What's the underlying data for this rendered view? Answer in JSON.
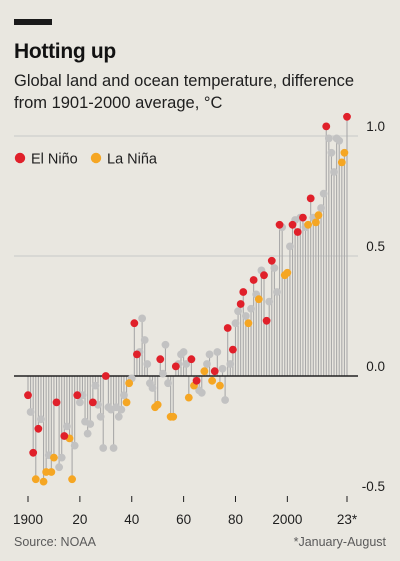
{
  "title": "Hotting up",
  "subtitle": "Global land and ocean temperature, difference from 1901-2000 average, °C",
  "source": "Source: NOAA",
  "footnote": "*January-August",
  "colors": {
    "background": "#e9e7e0",
    "el_nino": "#e0202a",
    "la_nina": "#f5a623",
    "neutral": "#c2c2c2",
    "stem": "#a9a9a9",
    "grid": "#c8c8c8",
    "zero_line": "#222222"
  },
  "chart_data": {
    "type": "scatter",
    "ylim": [
      -0.5,
      1.05
    ],
    "xlim": [
      1900,
      2023
    ],
    "y_ticks": [
      {
        "value": 1.0,
        "label": "1.0"
      },
      {
        "value": 0.5,
        "label": "0.5"
      },
      {
        "value": 0.0,
        "label": "0.0"
      },
      {
        "value": -0.5,
        "label": "-0.5"
      }
    ],
    "x_ticks": [
      {
        "value": 1900,
        "label": "1900"
      },
      {
        "value": 1920,
        "label": "20"
      },
      {
        "value": 1940,
        "label": "40"
      },
      {
        "value": 1960,
        "label": "60"
      },
      {
        "value": 1980,
        "label": "80"
      },
      {
        "value": 2000,
        "label": "2000"
      },
      {
        "value": 2023,
        "label": "23*"
      }
    ],
    "legend": [
      "El Niño",
      "La Niña"
    ],
    "grid": true,
    "x": [
      1900,
      1901,
      1902,
      1903,
      1904,
      1905,
      1906,
      1907,
      1908,
      1909,
      1910,
      1911,
      1912,
      1913,
      1914,
      1915,
      1916,
      1917,
      1918,
      1919,
      1920,
      1921,
      1922,
      1923,
      1924,
      1925,
      1926,
      1927,
      1928,
      1929,
      1930,
      1931,
      1932,
      1933,
      1934,
      1935,
      1936,
      1937,
      1938,
      1939,
      1940,
      1941,
      1942,
      1943,
      1944,
      1945,
      1946,
      1947,
      1948,
      1949,
      1950,
      1951,
      1952,
      1953,
      1954,
      1955,
      1956,
      1957,
      1958,
      1959,
      1960,
      1961,
      1962,
      1963,
      1964,
      1965,
      1966,
      1967,
      1968,
      1969,
      1970,
      1971,
      1972,
      1973,
      1974,
      1975,
      1976,
      1977,
      1978,
      1979,
      1980,
      1981,
      1982,
      1983,
      1984,
      1985,
      1986,
      1987,
      1988,
      1989,
      1990,
      1991,
      1992,
      1993,
      1994,
      1995,
      1996,
      1997,
      1998,
      1999,
      2000,
      2001,
      2002,
      2003,
      2004,
      2005,
      2006,
      2007,
      2008,
      2009,
      2010,
      2011,
      2012,
      2013,
      2014,
      2015,
      2016,
      2017,
      2018,
      2019,
      2020,
      2021,
      2022,
      2023
    ],
    "series": [
      {
        "name": "El Niño",
        "points": [
          [
            1900,
            -0.08
          ],
          [
            1902,
            -0.32
          ],
          [
            1904,
            -0.22
          ],
          [
            1911,
            -0.11
          ],
          [
            1914,
            -0.25
          ],
          [
            1919,
            -0.08
          ],
          [
            1925,
            -0.11
          ],
          [
            1930,
            0.0
          ],
          [
            1941,
            0.22
          ],
          [
            1942,
            0.09
          ],
          [
            1951,
            0.07
          ],
          [
            1957,
            0.04
          ],
          [
            1963,
            0.07
          ],
          [
            1965,
            -0.02
          ],
          [
            1972,
            0.02
          ],
          [
            1977,
            0.2
          ],
          [
            1979,
            0.11
          ],
          [
            1982,
            0.3
          ],
          [
            1983,
            0.35
          ],
          [
            1987,
            0.4
          ],
          [
            1991,
            0.42
          ],
          [
            1992,
            0.23
          ],
          [
            1994,
            0.48
          ],
          [
            1997,
            0.63
          ],
          [
            2002,
            0.63
          ],
          [
            2004,
            0.6
          ],
          [
            2006,
            0.66
          ],
          [
            2009,
            0.74
          ],
          [
            2015,
            1.04
          ],
          [
            2023,
            1.08
          ]
        ]
      },
      {
        "name": "La Niña",
        "points": [
          [
            1903,
            -0.43
          ],
          [
            1906,
            -0.44
          ],
          [
            1907,
            -0.4
          ],
          [
            1909,
            -0.4
          ],
          [
            1910,
            -0.34
          ],
          [
            1916,
            -0.26
          ],
          [
            1917,
            -0.43
          ],
          [
            1938,
            -0.11
          ],
          [
            1939,
            -0.03
          ],
          [
            1949,
            -0.13
          ],
          [
            1950,
            -0.12
          ],
          [
            1955,
            -0.17
          ],
          [
            1956,
            -0.17
          ],
          [
            1962,
            -0.09
          ],
          [
            1964,
            -0.04
          ],
          [
            1968,
            0.02
          ],
          [
            1971,
            -0.02
          ],
          [
            1974,
            -0.04
          ],
          [
            1985,
            0.22
          ],
          [
            1989,
            0.32
          ],
          [
            1999,
            0.42
          ],
          [
            2000,
            0.43
          ],
          [
            2008,
            0.63
          ],
          [
            2011,
            0.64
          ],
          [
            2012,
            0.67
          ],
          [
            2021,
            0.89
          ],
          [
            2022,
            0.93
          ]
        ]
      },
      {
        "name": "",
        "points": [
          [
            1901,
            -0.15
          ],
          [
            1905,
            -0.18
          ],
          [
            1908,
            -0.33
          ],
          [
            1912,
            -0.38
          ],
          [
            1913,
            -0.34
          ],
          [
            1915,
            -0.21
          ],
          [
            1918,
            -0.29
          ],
          [
            1920,
            -0.11
          ],
          [
            1921,
            -0.08
          ],
          [
            1922,
            -0.19
          ],
          [
            1923,
            -0.24
          ],
          [
            1924,
            -0.2
          ],
          [
            1926,
            -0.04
          ],
          [
            1927,
            -0.12
          ],
          [
            1928,
            -0.17
          ],
          [
            1929,
            -0.3
          ],
          [
            1931,
            -0.13
          ],
          [
            1932,
            -0.14
          ],
          [
            1933,
            -0.3
          ],
          [
            1934,
            -0.13
          ],
          [
            1935,
            -0.17
          ],
          [
            1936,
            -0.14
          ],
          [
            1937,
            -0.08
          ],
          [
            1940,
            -0.01
          ],
          [
            1943,
            0.1
          ],
          [
            1944,
            0.24
          ],
          [
            1945,
            0.15
          ],
          [
            1946,
            0.05
          ],
          [
            1947,
            -0.03
          ],
          [
            1948,
            -0.05
          ],
          [
            1952,
            0.01
          ],
          [
            1953,
            0.13
          ],
          [
            1954,
            -0.03
          ],
          [
            1958,
            0.05
          ],
          [
            1959,
            0.09
          ],
          [
            1960,
            0.1
          ],
          [
            1961,
            0.05
          ],
          [
            1966,
            -0.06
          ],
          [
            1967,
            -0.07
          ],
          [
            1969,
            0.05
          ],
          [
            1970,
            0.09
          ],
          [
            1973,
            0.1
          ],
          [
            1975,
            0.03
          ],
          [
            1976,
            -0.1
          ],
          [
            1978,
            0.05
          ],
          [
            1980,
            0.22
          ],
          [
            1981,
            0.27
          ],
          [
            1984,
            0.25
          ],
          [
            1986,
            0.28
          ],
          [
            1988,
            0.34
          ],
          [
            1990,
            0.44
          ],
          [
            1993,
            0.31
          ],
          [
            1995,
            0.45
          ],
          [
            1996,
            0.35
          ],
          [
            1998,
            0.62
          ],
          [
            2001,
            0.54
          ],
          [
            2003,
            0.65
          ],
          [
            2005,
            0.66
          ],
          [
            2007,
            0.62
          ],
          [
            2010,
            0.66
          ],
          [
            2013,
            0.7
          ],
          [
            2014,
            0.76
          ],
          [
            2016,
            0.99
          ],
          [
            2017,
            0.93
          ],
          [
            2018,
            0.85
          ],
          [
            2019,
            0.99
          ],
          [
            2020,
            0.98
          ]
        ]
      }
    ]
  }
}
